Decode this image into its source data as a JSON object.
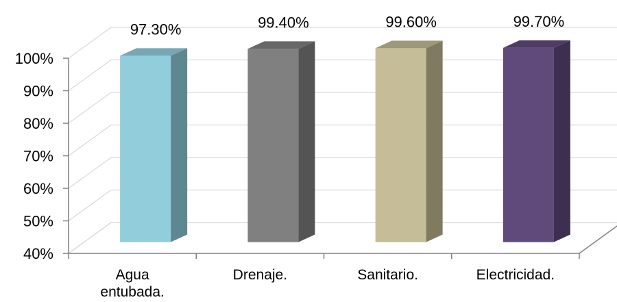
{
  "chart_data": {
    "type": "bar",
    "style": "3d-column",
    "categories": [
      "Agua entubada.",
      "Drenaje.",
      "Sanitario.",
      "Electricidad."
    ],
    "values": [
      97.3,
      99.4,
      99.6,
      99.7
    ],
    "data_labels": [
      "97.30%",
      "99.40%",
      "99.60%",
      "99.70%"
    ],
    "yticks": [
      "40%",
      "50%",
      "60%",
      "70%",
      "80%",
      "90%",
      "100%"
    ],
    "ylim": [
      40,
      100
    ],
    "grid": true,
    "legend": "none",
    "colors": {
      "series": [
        {
          "front": "#92cddc",
          "side": "#5f8791",
          "top": "#76a7b4"
        },
        {
          "front": "#808080",
          "side": "#545454",
          "top": "#676767"
        },
        {
          "front": "#c4bd97",
          "side": "#7f7a60",
          "top": "#9e987a"
        },
        {
          "front": "#604a7b",
          "side": "#3e2f50",
          "top": "#4e3c65"
        }
      ],
      "gridline": "#d9d9d9",
      "axis": "#808080"
    }
  }
}
